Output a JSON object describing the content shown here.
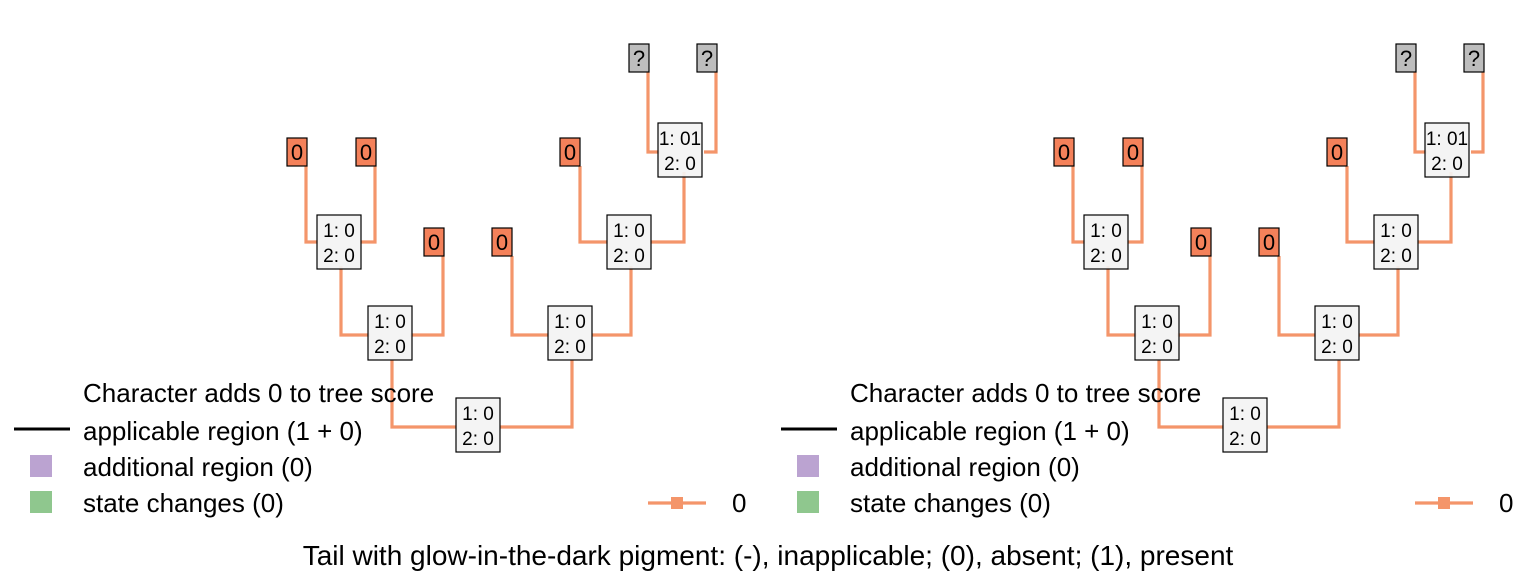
{
  "colors": {
    "branch": "#F4956A",
    "tip_state": "#F4815A",
    "tip_unknown": "#BDBDBD",
    "node_box": "#F3F3F3",
    "applicable": "#000000",
    "additional": "#BBA3D1",
    "state_change": "#8FC78E",
    "text": "#000000"
  },
  "panels": [
    {
      "tips": [
        {
          "label": "?",
          "kind": "unknown"
        },
        {
          "label": "?",
          "kind": "unknown"
        },
        {
          "label": "0",
          "kind": "state"
        },
        {
          "label": "0",
          "kind": "state"
        },
        {
          "label": "0",
          "kind": "state"
        },
        {
          "label": "0",
          "kind": "state"
        },
        {
          "label": "0",
          "kind": "state"
        },
        {
          "label": "0",
          "kind": "state"
        }
      ],
      "nodes": [
        {
          "line1": "1: 01",
          "line2": "2: 0"
        },
        {
          "line1": "1: 0",
          "line2": "2: 0"
        },
        {
          "line1": "1: 0",
          "line2": "2: 0"
        },
        {
          "line1": "1: 0",
          "line2": "2: 0"
        },
        {
          "line1": "1: 0",
          "line2": "2: 0"
        },
        {
          "line1": "1: 0",
          "line2": "2: 0"
        }
      ],
      "legend": {
        "score": "Character adds 0 to tree score",
        "applicable": "applicable region (1 + 0)",
        "additional": "additional region (0)",
        "changes": "state changes (0)",
        "state_key": "0"
      }
    },
    {
      "tips": [
        {
          "label": "?",
          "kind": "unknown"
        },
        {
          "label": "?",
          "kind": "unknown"
        },
        {
          "label": "0",
          "kind": "state"
        },
        {
          "label": "0",
          "kind": "state"
        },
        {
          "label": "0",
          "kind": "state"
        },
        {
          "label": "0",
          "kind": "state"
        },
        {
          "label": "0",
          "kind": "state"
        },
        {
          "label": "0",
          "kind": "state"
        }
      ],
      "nodes": [
        {
          "line1": "1: 01",
          "line2": "2: 0"
        },
        {
          "line1": "1: 0",
          "line2": "2: 0"
        },
        {
          "line1": "1: 0",
          "line2": "2: 0"
        },
        {
          "line1": "1: 0",
          "line2": "2: 0"
        },
        {
          "line1": "1: 0",
          "line2": "2: 0"
        },
        {
          "line1": "1: 0",
          "line2": "2: 0"
        }
      ],
      "legend": {
        "score": "Character adds 0 to tree score",
        "applicable": "applicable region (1 + 0)",
        "additional": "additional region (0)",
        "changes": "state changes (0)",
        "state_key": "0"
      }
    }
  ],
  "caption": "Tail with glow-in-the-dark pigment: (-), inapplicable; (0), absent; (1), present"
}
